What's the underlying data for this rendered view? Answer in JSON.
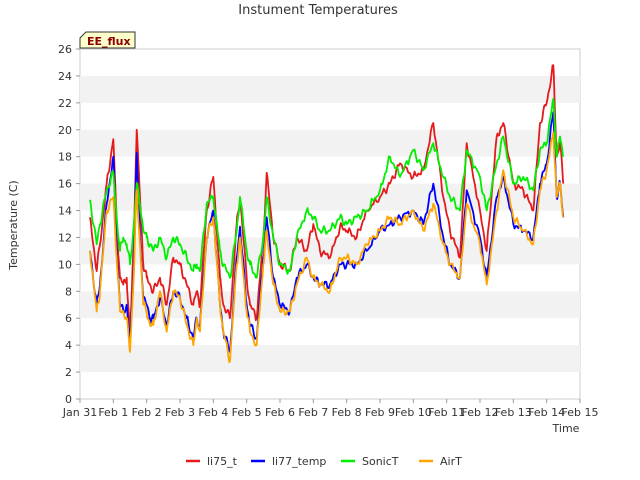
{
  "chart_data": {
    "type": "line",
    "title": "Instument Temperatures",
    "xlabel": "Time",
    "ylabel": "Temperature (C)",
    "badge": "EE_flux",
    "ylim": [
      0,
      26
    ],
    "yticks": [
      0,
      2,
      4,
      6,
      8,
      10,
      12,
      14,
      16,
      18,
      20,
      22,
      24,
      26
    ],
    "xlim": [
      0,
      15
    ],
    "xticks": [
      0,
      1,
      2,
      3,
      4,
      5,
      6,
      7,
      8,
      9,
      10,
      11,
      12,
      13,
      14,
      15
    ],
    "xtick_labels": [
      "Jan 31",
      "Feb 1",
      "Feb 2",
      "Feb 3",
      "Feb 4",
      "Feb 5",
      "Feb 6",
      "Feb 7",
      "Feb 8",
      "Feb 9",
      "Feb 10",
      "Feb 11",
      "Feb 12",
      "Feb 13",
      "Feb 14",
      "Feb 15"
    ],
    "x_unit": "days since Jan 31",
    "series": [
      {
        "name": "li75_t",
        "color": "#e41a1c",
        "x": [
          0.3,
          0.5,
          0.6,
          0.8,
          1.0,
          1.1,
          1.2,
          1.3,
          1.4,
          1.5,
          1.6,
          1.7,
          1.8,
          1.9,
          2.0,
          2.1,
          2.2,
          2.4,
          2.6,
          2.8,
          3.0,
          3.2,
          3.4,
          3.5,
          3.6,
          3.8,
          4.0,
          4.2,
          4.3,
          4.5,
          4.7,
          4.8,
          5.0,
          5.1,
          5.3,
          5.5,
          5.6,
          5.8,
          6.0,
          6.3,
          6.5,
          6.8,
          7.0,
          7.2,
          7.5,
          7.8,
          8.0,
          8.3,
          8.6,
          9.0,
          9.3,
          9.6,
          10.0,
          10.3,
          10.6,
          10.9,
          11.1,
          11.4,
          11.6,
          12.0,
          12.2,
          12.5,
          12.7,
          13.0,
          13.3,
          13.6,
          13.8,
          14.0,
          14.2,
          14.3,
          14.4,
          14.5
        ],
        "values": [
          13.5,
          9.5,
          11.5,
          16.0,
          19.3,
          13.0,
          9.0,
          8.5,
          9.0,
          4.5,
          11.0,
          20.0,
          15.0,
          10.0,
          9.0,
          8.5,
          8.0,
          9.0,
          7.0,
          10.5,
          10.0,
          8.5,
          7.0,
          8.0,
          7.0,
          14.0,
          16.5,
          9.0,
          7.0,
          6.0,
          13.0,
          15.0,
          9.0,
          7.0,
          6.0,
          12.0,
          16.8,
          12.0,
          10.0,
          9.5,
          12.0,
          11.0,
          13.0,
          11.0,
          10.5,
          12.8,
          12.5,
          12.0,
          14.0,
          15.0,
          16.0,
          17.5,
          16.5,
          17.0,
          20.5,
          15.0,
          12.5,
          10.5,
          19.0,
          14.0,
          11.0,
          19.5,
          20.5,
          16.0,
          15.5,
          14.0,
          20.5,
          22.0,
          24.8,
          18.0,
          19.0,
          16.0
        ]
      },
      {
        "name": "li77_temp",
        "color": "#0000ff",
        "x": [
          0.3,
          0.5,
          0.6,
          0.8,
          1.0,
          1.1,
          1.2,
          1.3,
          1.4,
          1.5,
          1.6,
          1.7,
          1.8,
          1.9,
          2.0,
          2.1,
          2.2,
          2.4,
          2.6,
          2.8,
          3.0,
          3.2,
          3.4,
          3.5,
          3.6,
          3.8,
          4.0,
          4.2,
          4.3,
          4.5,
          4.7,
          4.8,
          5.0,
          5.1,
          5.3,
          5.5,
          5.6,
          5.8,
          6.0,
          6.3,
          6.5,
          6.8,
          7.0,
          7.2,
          7.5,
          7.8,
          8.0,
          8.3,
          8.6,
          9.0,
          9.3,
          9.6,
          10.0,
          10.3,
          10.6,
          10.9,
          11.1,
          11.4,
          11.6,
          12.0,
          12.2,
          12.5,
          12.7,
          13.0,
          13.3,
          13.6,
          13.8,
          14.0,
          14.2,
          14.3,
          14.4,
          14.5
        ],
        "values": [
          11.0,
          7.0,
          8.5,
          14.5,
          18.0,
          11.0,
          7.0,
          6.5,
          7.0,
          4.0,
          9.0,
          18.3,
          12.0,
          7.5,
          7.0,
          6.0,
          6.0,
          7.5,
          5.5,
          8.0,
          7.5,
          6.0,
          4.5,
          6.0,
          5.5,
          12.0,
          14.0,
          7.0,
          5.0,
          3.5,
          10.5,
          12.8,
          7.0,
          5.5,
          4.5,
          10.5,
          13.5,
          9.0,
          7.0,
          6.5,
          9.0,
          10.0,
          9.0,
          8.5,
          8.5,
          10.0,
          10.0,
          10.0,
          11.0,
          12.5,
          13.0,
          13.5,
          14.0,
          13.0,
          16.0,
          12.0,
          10.0,
          9.0,
          15.5,
          12.0,
          9.0,
          15.0,
          16.5,
          13.0,
          12.5,
          12.0,
          16.0,
          17.5,
          21.3,
          15.0,
          16.0,
          13.5
        ]
      },
      {
        "name": "SonicT",
        "color": "#00ee00",
        "x": [
          0.3,
          0.5,
          0.6,
          0.8,
          1.0,
          1.1,
          1.2,
          1.3,
          1.4,
          1.5,
          1.6,
          1.7,
          1.8,
          1.9,
          2.0,
          2.1,
          2.2,
          2.4,
          2.6,
          2.8,
          3.0,
          3.2,
          3.4,
          3.5,
          3.6,
          3.8,
          4.0,
          4.2,
          4.3,
          4.5,
          4.7,
          4.8,
          5.0,
          5.1,
          5.3,
          5.5,
          5.6,
          5.8,
          6.0,
          6.3,
          6.5,
          6.8,
          7.0,
          7.2,
          7.5,
          7.8,
          8.0,
          8.3,
          8.6,
          9.0,
          9.3,
          9.6,
          10.0,
          10.3,
          10.6,
          10.9,
          11.1,
          11.4,
          11.6,
          12.0,
          12.2,
          12.5,
          12.7,
          13.0,
          13.3,
          13.6,
          13.8,
          14.0,
          14.2,
          14.3,
          14.4,
          14.5
        ],
        "values": [
          14.8,
          11.5,
          13.0,
          15.5,
          16.8,
          13.5,
          11.0,
          12.0,
          11.5,
          10.0,
          12.5,
          16.0,
          14.5,
          12.5,
          12.0,
          11.5,
          11.0,
          12.0,
          10.5,
          12.0,
          11.5,
          10.5,
          9.5,
          10.0,
          9.5,
          14.5,
          15.0,
          11.0,
          10.0,
          9.0,
          12.5,
          15.0,
          11.0,
          10.0,
          9.0,
          12.0,
          15.0,
          12.0,
          10.0,
          9.5,
          12.0,
          14.0,
          13.5,
          12.5,
          12.5,
          13.5,
          13.0,
          13.5,
          14.0,
          15.5,
          18.0,
          16.5,
          18.5,
          17.0,
          19.0,
          16.5,
          15.0,
          14.0,
          18.5,
          16.5,
          14.0,
          17.5,
          19.5,
          16.0,
          16.5,
          15.5,
          18.5,
          19.0,
          22.3,
          18.0,
          19.5,
          18.0
        ]
      },
      {
        "name": "AirT",
        "color": "#ffa500",
        "x": [
          0.3,
          0.5,
          0.6,
          0.8,
          1.0,
          1.1,
          1.2,
          1.3,
          1.4,
          1.5,
          1.6,
          1.7,
          1.8,
          1.9,
          2.0,
          2.1,
          2.2,
          2.4,
          2.6,
          2.8,
          3.0,
          3.2,
          3.4,
          3.5,
          3.6,
          3.8,
          4.0,
          4.2,
          4.3,
          4.5,
          4.7,
          4.8,
          5.0,
          5.1,
          5.3,
          5.5,
          5.6,
          5.8,
          6.0,
          6.3,
          6.5,
          6.8,
          7.0,
          7.2,
          7.5,
          7.8,
          8.0,
          8.3,
          8.6,
          9.0,
          9.3,
          9.6,
          10.0,
          10.3,
          10.6,
          10.9,
          11.1,
          11.4,
          11.6,
          12.0,
          12.2,
          12.5,
          12.7,
          13.0,
          13.3,
          13.6,
          13.8,
          14.0,
          14.2,
          14.3,
          14.4,
          14.5
        ],
        "values": [
          11.0,
          6.5,
          8.0,
          14.0,
          15.0,
          10.5,
          6.5,
          6.5,
          6.0,
          3.5,
          8.5,
          15.5,
          11.5,
          7.0,
          6.5,
          5.5,
          5.5,
          8.0,
          5.0,
          8.0,
          7.5,
          5.5,
          4.0,
          6.0,
          5.0,
          12.0,
          13.5,
          7.0,
          5.0,
          2.8,
          10.0,
          12.0,
          6.5,
          5.0,
          4.0,
          10.0,
          12.5,
          8.5,
          6.5,
          6.5,
          8.5,
          10.5,
          9.0,
          8.5,
          8.0,
          10.5,
          10.5,
          10.0,
          11.5,
          12.5,
          13.5,
          13.0,
          14.0,
          12.5,
          14.5,
          11.5,
          10.0,
          9.0,
          14.5,
          11.5,
          8.5,
          14.0,
          17.0,
          13.5,
          12.5,
          11.5,
          15.5,
          17.0,
          19.8,
          15.0,
          16.0,
          13.5
        ]
      }
    ],
    "legend_position": "bottom-center",
    "grid": "alternating horizontal bands"
  }
}
